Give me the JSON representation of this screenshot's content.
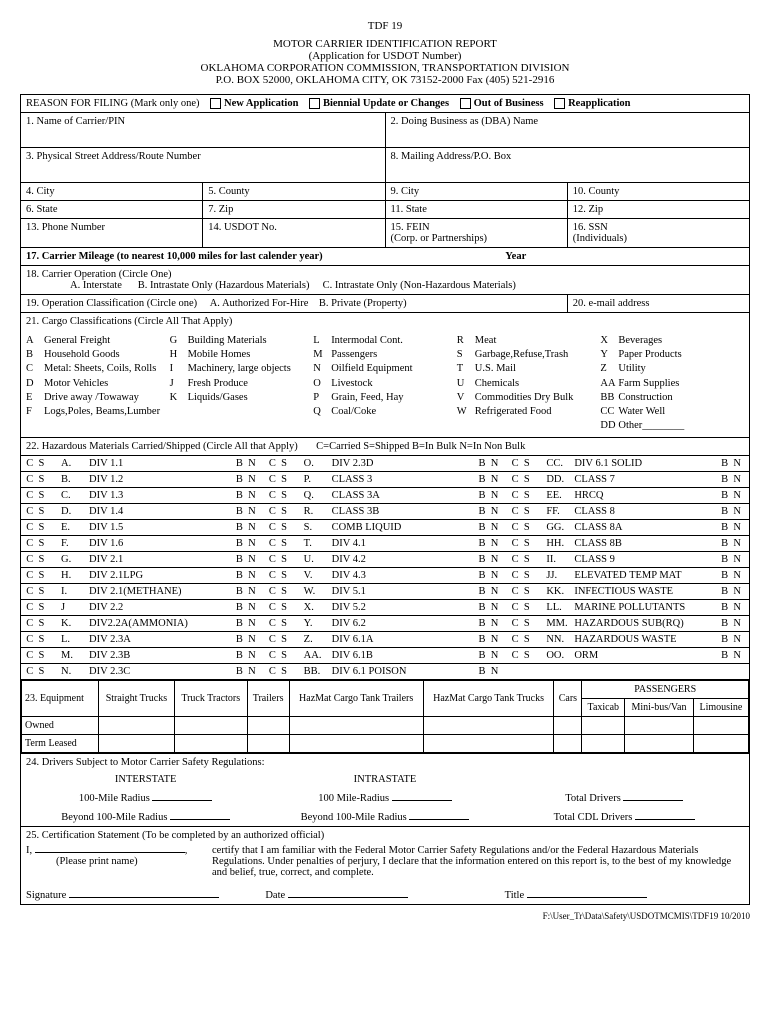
{
  "header": {
    "form_no": "TDF 19",
    "title": "MOTOR CARRIER IDENTIFICATION REPORT",
    "subtitle": "(Application for USDOT Number)",
    "agency": "OKLAHOMA CORPORATION COMMISSION, TRANSPORTATION DIVISION",
    "address": "P.O. BOX 52000, OKLAHOMA CITY, OK 73152-2000 Fax (405) 521-2916"
  },
  "reason": {
    "label": "REASON FOR FILING (Mark only one)",
    "opts": [
      "New Application",
      "Biennial Update or Changes",
      "Out of Business",
      "Reapplication"
    ]
  },
  "fields": {
    "f1": "1.  Name of Carrier/PIN",
    "f2": "2.  Doing Business as (DBA) Name",
    "f3": "3.  Physical Street Address/Route Number",
    "f8": "8.  Mailing Address/P.O. Box",
    "f4": "4.  City",
    "f5": "5.  County",
    "f9": "9.  City",
    "f10": "10.  County",
    "f6": "6.  State",
    "f7": "7.  Zip",
    "f11": "11.  State",
    "f12": "12.  Zip",
    "f13": "13.  Phone Number",
    "f14": "14.  USDOT No.",
    "f15": "15.  FEIN",
    "f15b": "(Corp. or Partnerships)",
    "f16": "16.  SSN",
    "f16b": "(Individuals)",
    "f17": "17.  Carrier Mileage (to nearest 10,000 miles for last calender year)",
    "f17b": "Year",
    "f18": "18.  Carrier Operation (Circle One)",
    "f18a": "A.  Interstate",
    "f18b": "B.  Intrastate Only (Hazardous Materials)",
    "f18c": "C.  Intrastate Only (Non-Hazardous Materials)",
    "f19": "19. Operation Classification (Circle one)",
    "f19a": "A.  Authorized For-Hire",
    "f19b": "B.  Private (Property)",
    "f20": "20.  e-mail address",
    "f21": "21.  Cargo Classifications (Circle All That Apply)",
    "f22": "22.  Hazardous Materials Carried/Shipped (Circle All that Apply)",
    "f22l": "C=Carried       S=Shipped       B=In Bulk       N=In Non Bulk",
    "f23": "23. Equipment",
    "f24": "24.  Drivers Subject to Motor Carrier Safety Regulations:",
    "f25": "25.  Certification Statement (To be completed by an authorized official)"
  },
  "cargo": [
    [
      [
        "A",
        "General Freight"
      ],
      [
        "B",
        "Household Goods"
      ],
      [
        "C",
        "Metal: Sheets, Coils, Rolls"
      ],
      [
        "D",
        "Motor Vehicles"
      ],
      [
        "E",
        "Drive away /Towaway"
      ],
      [
        "F",
        "Logs,Poles, Beams,Lumber"
      ]
    ],
    [
      [
        "G",
        "Building Materials"
      ],
      [
        "H",
        "Mobile Homes"
      ],
      [
        "I",
        "Machinery, large objects"
      ],
      [
        "J",
        "Fresh Produce"
      ],
      [
        "K",
        "Liquids/Gases"
      ]
    ],
    [
      [
        "L",
        "Intermodal Cont."
      ],
      [
        "M",
        "Passengers"
      ],
      [
        "N",
        "Oilfield Equipment"
      ],
      [
        "O",
        "Livestock"
      ],
      [
        "P",
        "Grain, Feed, Hay"
      ],
      [
        "Q",
        "Coal/Coke"
      ]
    ],
    [
      [
        "R",
        "Meat"
      ],
      [
        "S",
        "Garbage,Refuse,Trash"
      ],
      [
        "T",
        "U.S. Mail"
      ],
      [
        "U",
        "Chemicals"
      ],
      [
        "V",
        "Commodities Dry Bulk"
      ],
      [
        "W",
        "Refrigerated Food"
      ]
    ],
    [
      [
        "X",
        "Beverages"
      ],
      [
        "Y",
        "Paper Products"
      ],
      [
        "Z",
        "Utility"
      ],
      [
        "AA",
        "Farm Supplies"
      ],
      [
        "BB",
        "Construction"
      ],
      [
        "CC",
        "Water Well"
      ],
      [
        "DD",
        "Other________"
      ]
    ]
  ],
  "hazmat": [
    [
      [
        "A.",
        "DIV 1.1"
      ],
      [
        "O.",
        "DIV 2.3D"
      ],
      [
        "CC.",
        "DIV 6.1 SOLID"
      ]
    ],
    [
      [
        "B.",
        "DIV 1.2"
      ],
      [
        "P.",
        "CLASS 3"
      ],
      [
        "DD.",
        "CLASS 7"
      ]
    ],
    [
      [
        "C.",
        "DIV 1.3"
      ],
      [
        "Q.",
        "CLASS 3A"
      ],
      [
        "EE.",
        "HRCQ"
      ]
    ],
    [
      [
        "D.",
        "DIV 1.4"
      ],
      [
        "R.",
        "CLASS 3B"
      ],
      [
        "FF.",
        "CLASS 8"
      ]
    ],
    [
      [
        "E.",
        "DIV 1.5"
      ],
      [
        "S.",
        "COMB LIQUID"
      ],
      [
        "GG.",
        "CLASS 8A"
      ]
    ],
    [
      [
        "F.",
        "DIV 1.6"
      ],
      [
        "T.",
        "DIV 4.1"
      ],
      [
        "HH.",
        "CLASS 8B"
      ]
    ],
    [
      [
        "G.",
        "DIV 2.1"
      ],
      [
        "U.",
        "DIV 4.2"
      ],
      [
        "II.",
        "CLASS 9"
      ]
    ],
    [
      [
        "H.",
        "DIV 2.1LPG"
      ],
      [
        "V.",
        "DIV 4.3"
      ],
      [
        "JJ.",
        "ELEVATED TEMP MAT"
      ]
    ],
    [
      [
        "I.",
        "DIV 2.1(METHANE)"
      ],
      [
        "W.",
        "DIV 5.1"
      ],
      [
        "KK.",
        "INFECTIOUS WASTE"
      ]
    ],
    [
      [
        "J",
        "DIV 2.2"
      ],
      [
        "X.",
        "DIV 5.2"
      ],
      [
        "LL.",
        "MARINE POLLUTANTS"
      ]
    ],
    [
      [
        "K.",
        "DIV2.2A(AMMONIA)"
      ],
      [
        "Y.",
        "DIV 6.2"
      ],
      [
        "MM.",
        "HAZARDOUS SUB(RQ)"
      ]
    ],
    [
      [
        "L.",
        "DIV 2.3A"
      ],
      [
        "Z.",
        "DIV 6.1A"
      ],
      [
        "NN.",
        "HAZARDOUS WASTE"
      ]
    ],
    [
      [
        "M.",
        "DIV 2.3B"
      ],
      [
        "AA.",
        "DIV 6.1B"
      ],
      [
        "OO.",
        "ORM"
      ]
    ],
    [
      [
        "N.",
        "DIV 2.3C"
      ],
      [
        "BB.",
        "DIV 6.1 POISON"
      ],
      [
        "",
        ""
      ]
    ]
  ],
  "equip": {
    "headers": [
      "Straight Trucks",
      "Truck Tractors",
      "Trailers",
      "HazMat Cargo Tank Trailers",
      "HazMat Cargo Tank Trucks",
      "Cars"
    ],
    "pass_header": "PASSENGERS",
    "pass_sub": [
      "Taxicab",
      "Mini-bus/Van",
      "Limousine"
    ],
    "rows": [
      "Owned",
      "Term Leased"
    ]
  },
  "drivers": {
    "interstate": "INTERSTATE",
    "intrastate": "INTRASTATE",
    "r100": "100-Mile Radius",
    "r100b": "100 Mile-Radius",
    "b100": "Beyond 100-Mile Radius",
    "b100b": "Beyond 100-Mile Radius",
    "total": "Total Drivers",
    "totalcdl": "Total CDL Drivers"
  },
  "cert": {
    "i": "I, ",
    "print": "(Please print name)",
    "text": "certify that I am familiar with the Federal Motor Carrier Safety Regulations and/or the Federal Hazardous Materials Regulations.  Under penalties of perjury, I declare that the information entered on this report is, to the best of my knowledge and belief, true, correct, and complete.",
    "sig": "Signature",
    "date": "Date",
    "title": "Title"
  },
  "footer": "F:\\User_Tr\\Data\\Safety\\USDOTMCMIS\\TDF19 10/2010"
}
